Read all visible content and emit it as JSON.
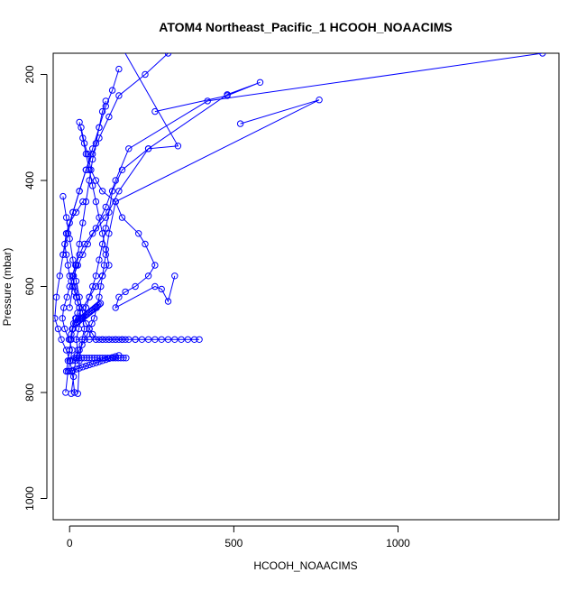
{
  "chart_data": {
    "type": "line",
    "title": "ATOM4 Northeast_Pacific_1 HCOOH_NOAACIMS",
    "xlabel": "HCOOH_NOAACIMS",
    "ylabel": "Pressure (mbar)",
    "xlim": [
      -50,
      1490
    ],
    "ylim": [
      1040,
      160
    ],
    "y_inverted": true,
    "grid": false,
    "legend": "none",
    "marker": "open-circle",
    "x_ticks": [
      0,
      500,
      1000
    ],
    "y_ticks": [
      200,
      400,
      600,
      800,
      1000
    ],
    "series_color": "#0000ff",
    "series": [
      {
        "x": [
          5,
          12,
          18,
          25,
          20,
          28,
          35,
          30,
          22,
          15,
          8,
          18,
          30,
          45,
          70,
          110,
          150,
          240,
          330,
          160
        ],
        "y": [
          802,
          770,
          740,
          720,
          700,
          680,
          660,
          640,
          620,
          600,
          580,
          560,
          540,
          520,
          500,
          470,
          420,
          340,
          335,
          150
        ]
      },
      {
        "x": [
          -12,
          -5,
          2,
          8,
          -2,
          -15,
          -22,
          -18,
          -8,
          0,
          12,
          25,
          40,
          55,
          80,
          110,
          140,
          180,
          420,
          1440
        ],
        "y": [
          800,
          760,
          740,
          720,
          700,
          680,
          660,
          640,
          620,
          600,
          580,
          560,
          540,
          520,
          490,
          450,
          400,
          340,
          250,
          160
        ]
      },
      {
        "x": [
          15,
          8,
          0,
          -10,
          -25,
          -35,
          -45,
          -40,
          -30,
          -20,
          -5,
          10,
          30,
          50,
          70,
          90,
          120,
          150,
          230,
          300
        ],
        "y": [
          800,
          760,
          740,
          720,
          700,
          680,
          660,
          620,
          580,
          540,
          500,
          460,
          420,
          380,
          350,
          320,
          280,
          240,
          200,
          160
        ]
      },
      {
        "x": [
          25,
          30,
          38,
          45,
          40,
          50,
          60,
          70,
          80,
          90,
          100,
          110,
          120,
          130,
          160,
          240,
          480,
          580,
          480,
          260
        ],
        "y": [
          802,
          740,
          700,
          680,
          660,
          640,
          620,
          600,
          580,
          550,
          520,
          490,
          460,
          420,
          380,
          340,
          238,
          215,
          240,
          270
        ]
      },
      {
        "x": [
          2,
          5,
          8,
          12,
          18,
          24,
          30,
          25,
          20,
          15,
          10,
          5,
          0,
          -5,
          -10,
          -15,
          -10,
          0,
          20,
          40
        ],
        "y": [
          700,
          690,
          680,
          670,
          660,
          650,
          640,
          630,
          620,
          610,
          600,
          590,
          580,
          560,
          540,
          520,
          500,
          480,
          460,
          440
        ]
      },
      {
        "x": [
          60,
          80,
          100,
          120,
          140,
          160,
          180,
          200,
          220,
          240,
          260,
          280,
          300,
          320,
          340,
          360,
          380,
          395,
          200,
          20
        ],
        "y": [
          700,
          700,
          700,
          700,
          700,
          700,
          700,
          700,
          700,
          700,
          700,
          700,
          700,
          700,
          700,
          700,
          700,
          700,
          700,
          700
        ]
      },
      {
        "x": [
          8,
          15,
          22,
          30,
          38,
          46,
          54,
          60,
          68,
          75,
          82,
          90,
          95,
          100,
          105,
          110,
          120,
          140,
          760,
          520
        ],
        "y": [
          740,
          735,
          730,
          720,
          710,
          700,
          690,
          680,
          670,
          660,
          640,
          620,
          600,
          580,
          560,
          540,
          500,
          440,
          248,
          293
        ]
      },
      {
        "x": [
          35,
          45,
          55,
          65,
          80,
          100,
          140,
          160,
          210,
          230,
          260,
          240,
          200,
          170,
          150,
          140,
          260,
          280,
          300,
          320
        ],
        "y": [
          300,
          330,
          350,
          380,
          400,
          420,
          440,
          470,
          500,
          520,
          560,
          580,
          600,
          610,
          620,
          640,
          600,
          605,
          628,
          580
        ]
      },
      {
        "x": [
          -20,
          -10,
          0,
          10,
          20,
          30,
          40,
          50,
          60,
          70,
          80,
          90,
          100,
          110,
          120,
          130,
          140,
          150,
          160,
          170
        ],
        "y": [
          430,
          470,
          510,
          550,
          590,
          620,
          650,
          670,
          680,
          690,
          700,
          700,
          700,
          700,
          700,
          700,
          700,
          700,
          700,
          700
        ]
      },
      {
        "x": [
          18,
          22,
          26,
          30,
          34,
          38,
          42,
          46,
          50,
          54,
          58,
          62,
          66,
          70,
          74,
          78,
          82,
          86,
          90,
          94
        ],
        "y": [
          670,
          668,
          666,
          664,
          662,
          660,
          658,
          656,
          654,
          652,
          650,
          648,
          646,
          644,
          642,
          640,
          638,
          636,
          634,
          632
        ]
      },
      {
        "x": [
          30,
          40,
          50,
          60,
          70,
          80,
          90,
          100,
          110,
          120,
          100,
          80,
          60,
          40,
          20,
          10,
          5,
          0,
          -5,
          -10
        ],
        "y": [
          290,
          320,
          350,
          380,
          410,
          440,
          470,
          500,
          530,
          560,
          580,
          600,
          620,
          640,
          660,
          680,
          700,
          720,
          740,
          760
        ]
      },
      {
        "x": [
          150,
          130,
          110,
          90,
          70,
          50,
          30,
          10,
          -10,
          -20
        ],
        "y": [
          190,
          230,
          260,
          300,
          340,
          380,
          420,
          460,
          500,
          540
        ]
      },
      {
        "x": [
          110,
          100,
          90,
          80,
          70,
          60,
          50,
          40,
          30,
          20,
          10,
          0
        ],
        "y": [
          250,
          270,
          300,
          330,
          360,
          400,
          440,
          480,
          520,
          560,
          600,
          640
        ]
      },
      {
        "x": [
          20,
          28,
          36,
          44,
          52,
          60,
          68,
          76,
          84,
          92,
          100,
          108,
          116,
          124,
          132,
          140,
          148,
          156,
          164,
          172
        ],
        "y": [
          735,
          735,
          735,
          735,
          735,
          735,
          735,
          735,
          735,
          735,
          735,
          735,
          735,
          735,
          735,
          735,
          735,
          735,
          735,
          735
        ]
      },
      {
        "x": [
          0,
          10,
          20,
          30,
          40,
          50,
          60,
          70,
          80,
          90,
          100,
          110,
          120,
          130,
          140,
          150
        ],
        "y": [
          760,
          758,
          756,
          754,
          752,
          750,
          748,
          746,
          744,
          742,
          740,
          738,
          736,
          734,
          732,
          730
        ]
      }
    ]
  }
}
